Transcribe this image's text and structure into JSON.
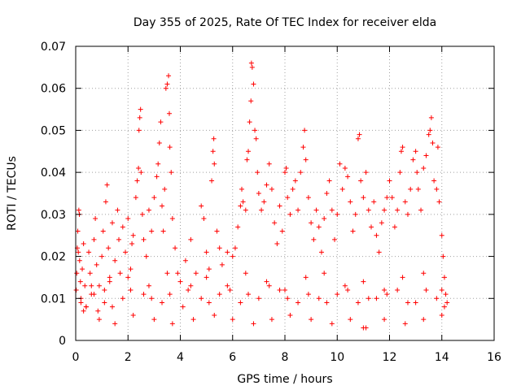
{
  "chart_data": {
    "type": "scatter",
    "title": "Day 355 of 2025, Rate Of TEC Index for receiver elda",
    "xlabel": "GPS time / hours",
    "ylabel": "ROTI / TECUs",
    "xlim": [
      0,
      16
    ],
    "ylim": [
      0,
      0.07
    ],
    "x_ticks": [
      0,
      2,
      4,
      6,
      8,
      10,
      12,
      14,
      16
    ],
    "x_tick_labels": [
      "0",
      "2",
      "4",
      "6",
      "8",
      "10",
      "12",
      "14",
      "16"
    ],
    "y_ticks": [
      0,
      0.01,
      0.02,
      0.03,
      0.04,
      0.05,
      0.06,
      0.07
    ],
    "y_tick_labels": [
      "0",
      "0.01",
      "0.02",
      "0.03",
      "0.04",
      "0.05",
      "0.06",
      "0.07"
    ],
    "grid": true,
    "marker": "plus",
    "color": "#ff0000",
    "series": [
      {
        "points": [
          [
            0.02,
            0.012
          ],
          [
            0.04,
            0.016
          ],
          [
            0.06,
            0.022
          ],
          [
            0.08,
            0.026
          ],
          [
            0.1,
            0.021
          ],
          [
            0.12,
            0.031
          ],
          [
            0.14,
            0.03
          ],
          [
            0.15,
            0.019
          ],
          [
            0.18,
            0.014
          ],
          [
            0.2,
            0.009
          ],
          [
            0.25,
            0.017
          ],
          [
            0.3,
            0.023
          ],
          [
            0.35,
            0.013
          ],
          [
            0.4,
            0.008
          ],
          [
            0.5,
            0.021
          ],
          [
            0.55,
            0.016
          ],
          [
            0.6,
            0.011
          ],
          [
            0.7,
            0.024
          ],
          [
            0.75,
            0.029
          ],
          [
            0.8,
            0.018
          ],
          [
            0.85,
            0.007
          ],
          [
            0.9,
            0.013
          ],
          [
            1.0,
            0.02
          ],
          [
            1.05,
            0.026
          ],
          [
            1.1,
            0.012
          ],
          [
            1.15,
            0.033
          ],
          [
            1.2,
            0.037
          ],
          [
            1.25,
            0.022
          ],
          [
            1.3,
            0.015
          ],
          [
            1.4,
            0.028
          ],
          [
            1.5,
            0.019
          ],
          [
            1.6,
            0.031
          ],
          [
            1.65,
            0.024
          ],
          [
            1.7,
            0.016
          ],
          [
            1.8,
            0.027
          ],
          [
            1.9,
            0.021
          ],
          [
            2.0,
            0.029
          ],
          [
            2.1,
            0.017
          ],
          [
            2.15,
            0.023
          ],
          [
            2.2,
            0.025
          ],
          [
            2.3,
            0.034
          ],
          [
            2.35,
            0.038
          ],
          [
            2.4,
            0.041
          ],
          [
            2.42,
            0.05
          ],
          [
            2.45,
            0.053
          ],
          [
            2.48,
            0.055
          ],
          [
            2.5,
            0.04
          ],
          [
            2.55,
            0.03
          ],
          [
            2.6,
            0.024
          ],
          [
            2.7,
            0.02
          ],
          [
            2.8,
            0.031
          ],
          [
            2.9,
            0.026
          ],
          [
            3.0,
            0.034
          ],
          [
            3.1,
            0.039
          ],
          [
            3.15,
            0.042
          ],
          [
            3.2,
            0.047
          ],
          [
            3.25,
            0.052
          ],
          [
            3.3,
            0.032
          ],
          [
            3.35,
            0.026
          ],
          [
            3.4,
            0.036
          ],
          [
            3.45,
            0.06
          ],
          [
            3.5,
            0.061
          ],
          [
            3.55,
            0.063
          ],
          [
            3.58,
            0.054
          ],
          [
            3.6,
            0.046
          ],
          [
            3.65,
            0.04
          ],
          [
            3.7,
            0.029
          ],
          [
            3.8,
            0.022
          ],
          [
            3.9,
            0.016
          ],
          [
            4.0,
            0.014
          ],
          [
            4.2,
            0.019
          ],
          [
            4.4,
            0.024
          ],
          [
            4.6,
            0.016
          ],
          [
            4.8,
            0.032
          ],
          [
            4.9,
            0.029
          ],
          [
            5.0,
            0.021
          ],
          [
            5.1,
            0.017
          ],
          [
            5.2,
            0.038
          ],
          [
            5.25,
            0.045
          ],
          [
            5.28,
            0.048
          ],
          [
            5.3,
            0.042
          ],
          [
            5.4,
            0.026
          ],
          [
            5.5,
            0.022
          ],
          [
            5.6,
            0.018
          ],
          [
            5.8,
            0.021
          ],
          [
            6.0,
            0.02
          ],
          [
            6.1,
            0.022
          ],
          [
            6.2,
            0.027
          ],
          [
            6.3,
            0.032
          ],
          [
            6.35,
            0.036
          ],
          [
            6.4,
            0.033
          ],
          [
            6.5,
            0.031
          ],
          [
            6.55,
            0.043
          ],
          [
            6.6,
            0.045
          ],
          [
            6.65,
            0.052
          ],
          [
            6.7,
            0.057
          ],
          [
            6.72,
            0.066
          ],
          [
            6.75,
            0.065
          ],
          [
            6.8,
            0.061
          ],
          [
            6.85,
            0.05
          ],
          [
            6.9,
            0.048
          ],
          [
            6.95,
            0.04
          ],
          [
            7.0,
            0.035
          ],
          [
            7.1,
            0.031
          ],
          [
            7.2,
            0.033
          ],
          [
            7.3,
            0.037
          ],
          [
            7.4,
            0.042
          ],
          [
            7.5,
            0.036
          ],
          [
            7.6,
            0.028
          ],
          [
            7.7,
            0.023
          ],
          [
            7.8,
            0.032
          ],
          [
            7.9,
            0.026
          ],
          [
            8.0,
            0.04
          ],
          [
            8.05,
            0.041
          ],
          [
            8.1,
            0.034
          ],
          [
            8.2,
            0.03
          ],
          [
            8.3,
            0.036
          ],
          [
            8.4,
            0.038
          ],
          [
            8.5,
            0.031
          ],
          [
            8.6,
            0.04
          ],
          [
            8.7,
            0.046
          ],
          [
            8.75,
            0.05
          ],
          [
            8.8,
            0.043
          ],
          [
            8.9,
            0.034
          ],
          [
            9.0,
            0.028
          ],
          [
            9.1,
            0.024
          ],
          [
            9.2,
            0.031
          ],
          [
            9.3,
            0.027
          ],
          [
            9.4,
            0.021
          ],
          [
            9.5,
            0.029
          ],
          [
            9.6,
            0.035
          ],
          [
            9.7,
            0.038
          ],
          [
            9.8,
            0.031
          ],
          [
            9.9,
            0.024
          ],
          [
            10.0,
            0.03
          ],
          [
            10.1,
            0.042
          ],
          [
            10.2,
            0.036
          ],
          [
            10.3,
            0.041
          ],
          [
            10.4,
            0.039
          ],
          [
            10.5,
            0.033
          ],
          [
            10.6,
            0.026
          ],
          [
            10.7,
            0.03
          ],
          [
            10.8,
            0.048
          ],
          [
            10.85,
            0.049
          ],
          [
            10.9,
            0.038
          ],
          [
            11.0,
            0.034
          ],
          [
            11.1,
            0.04
          ],
          [
            11.2,
            0.031
          ],
          [
            11.3,
            0.027
          ],
          [
            11.4,
            0.033
          ],
          [
            11.5,
            0.025
          ],
          [
            11.6,
            0.021
          ],
          [
            11.7,
            0.028
          ],
          [
            11.8,
            0.031
          ],
          [
            11.9,
            0.034
          ],
          [
            12.0,
            0.038
          ],
          [
            12.1,
            0.034
          ],
          [
            12.2,
            0.027
          ],
          [
            12.3,
            0.031
          ],
          [
            12.4,
            0.04
          ],
          [
            12.45,
            0.045
          ],
          [
            12.5,
            0.046
          ],
          [
            12.6,
            0.033
          ],
          [
            12.7,
            0.03
          ],
          [
            12.8,
            0.036
          ],
          [
            12.9,
            0.043
          ],
          [
            13.0,
            0.045
          ],
          [
            13.05,
            0.04
          ],
          [
            13.1,
            0.036
          ],
          [
            13.2,
            0.031
          ],
          [
            13.3,
            0.041
          ],
          [
            13.4,
            0.044
          ],
          [
            13.5,
            0.049
          ],
          [
            13.55,
            0.05
          ],
          [
            13.6,
            0.053
          ],
          [
            13.65,
            0.047
          ],
          [
            13.7,
            0.038
          ],
          [
            13.8,
            0.036
          ],
          [
            13.85,
            0.046
          ],
          [
            13.9,
            0.033
          ],
          [
            14.0,
            0.025
          ],
          [
            14.05,
            0.02
          ],
          [
            14.1,
            0.015
          ],
          [
            14.15,
            0.011
          ],
          [
            14.2,
            0.009
          ],
          [
            0.3,
            0.007
          ],
          [
            0.9,
            0.005
          ],
          [
            1.5,
            0.004
          ],
          [
            2.2,
            0.006
          ],
          [
            3.0,
            0.005
          ],
          [
            3.7,
            0.004
          ],
          [
            4.5,
            0.005
          ],
          [
            5.3,
            0.006
          ],
          [
            6.0,
            0.005
          ],
          [
            6.8,
            0.004
          ],
          [
            7.5,
            0.005
          ],
          [
            8.2,
            0.006
          ],
          [
            9.0,
            0.005
          ],
          [
            9.8,
            0.004
          ],
          [
            10.5,
            0.005
          ],
          [
            11.0,
            0.003
          ],
          [
            11.1,
            0.003
          ],
          [
            11.8,
            0.005
          ],
          [
            12.6,
            0.004
          ],
          [
            13.3,
            0.005
          ],
          [
            14.0,
            0.006
          ],
          [
            0.4,
            0.008
          ],
          [
            1.1,
            0.009
          ],
          [
            1.8,
            0.01
          ],
          [
            2.6,
            0.011
          ],
          [
            3.3,
            0.009
          ],
          [
            4.1,
            0.008
          ],
          [
            4.8,
            0.01
          ],
          [
            5.5,
            0.011
          ],
          [
            6.3,
            0.009
          ],
          [
            7.0,
            0.01
          ],
          [
            7.8,
            0.012
          ],
          [
            8.5,
            0.009
          ],
          [
            9.3,
            0.01
          ],
          [
            10.0,
            0.011
          ],
          [
            10.8,
            0.009
          ],
          [
            11.5,
            0.01
          ],
          [
            12.3,
            0.012
          ],
          [
            13.0,
            0.009
          ],
          [
            13.8,
            0.01
          ],
          [
            0.6,
            0.013
          ],
          [
            1.3,
            0.014
          ],
          [
            2.0,
            0.015
          ],
          [
            2.8,
            0.013
          ],
          [
            3.5,
            0.016
          ],
          [
            4.3,
            0.012
          ],
          [
            5.0,
            0.015
          ],
          [
            5.8,
            0.013
          ],
          [
            6.5,
            0.016
          ],
          [
            7.3,
            0.014
          ],
          [
            8.0,
            0.012
          ],
          [
            8.8,
            0.015
          ],
          [
            9.5,
            0.016
          ],
          [
            10.3,
            0.013
          ],
          [
            11.0,
            0.014
          ],
          [
            11.8,
            0.012
          ],
          [
            12.5,
            0.015
          ],
          [
            13.3,
            0.016
          ],
          [
            14.0,
            0.012
          ],
          [
            0.2,
            0.01
          ],
          [
            0.7,
            0.011
          ],
          [
            1.4,
            0.008
          ],
          [
            2.1,
            0.012
          ],
          [
            2.9,
            0.01
          ],
          [
            3.6,
            0.011
          ],
          [
            4.4,
            0.013
          ],
          [
            5.1,
            0.009
          ],
          [
            5.9,
            0.012
          ],
          [
            6.6,
            0.011
          ],
          [
            7.4,
            0.013
          ],
          [
            8.1,
            0.01
          ],
          [
            8.9,
            0.011
          ],
          [
            9.6,
            0.009
          ],
          [
            10.4,
            0.012
          ],
          [
            11.2,
            0.01
          ],
          [
            11.9,
            0.011
          ],
          [
            12.7,
            0.009
          ],
          [
            13.4,
            0.012
          ],
          [
            14.1,
            0.008
          ]
        ]
      }
    ]
  }
}
